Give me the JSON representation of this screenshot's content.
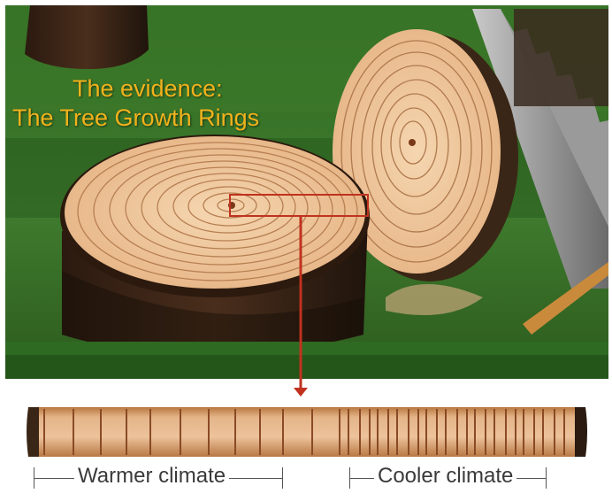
{
  "title": {
    "line1": "The evidence:",
    "line2": "The Tree Growth Rings"
  },
  "scale_labels": {
    "warmer": "Warmer climate",
    "cooler": "Cooler climate"
  },
  "colors": {
    "title": "#f2b21c",
    "wood": "#f0c9a3",
    "ring": "#8a4a25",
    "pointer": "#c0321f",
    "grass": "#3f7a2e"
  }
}
